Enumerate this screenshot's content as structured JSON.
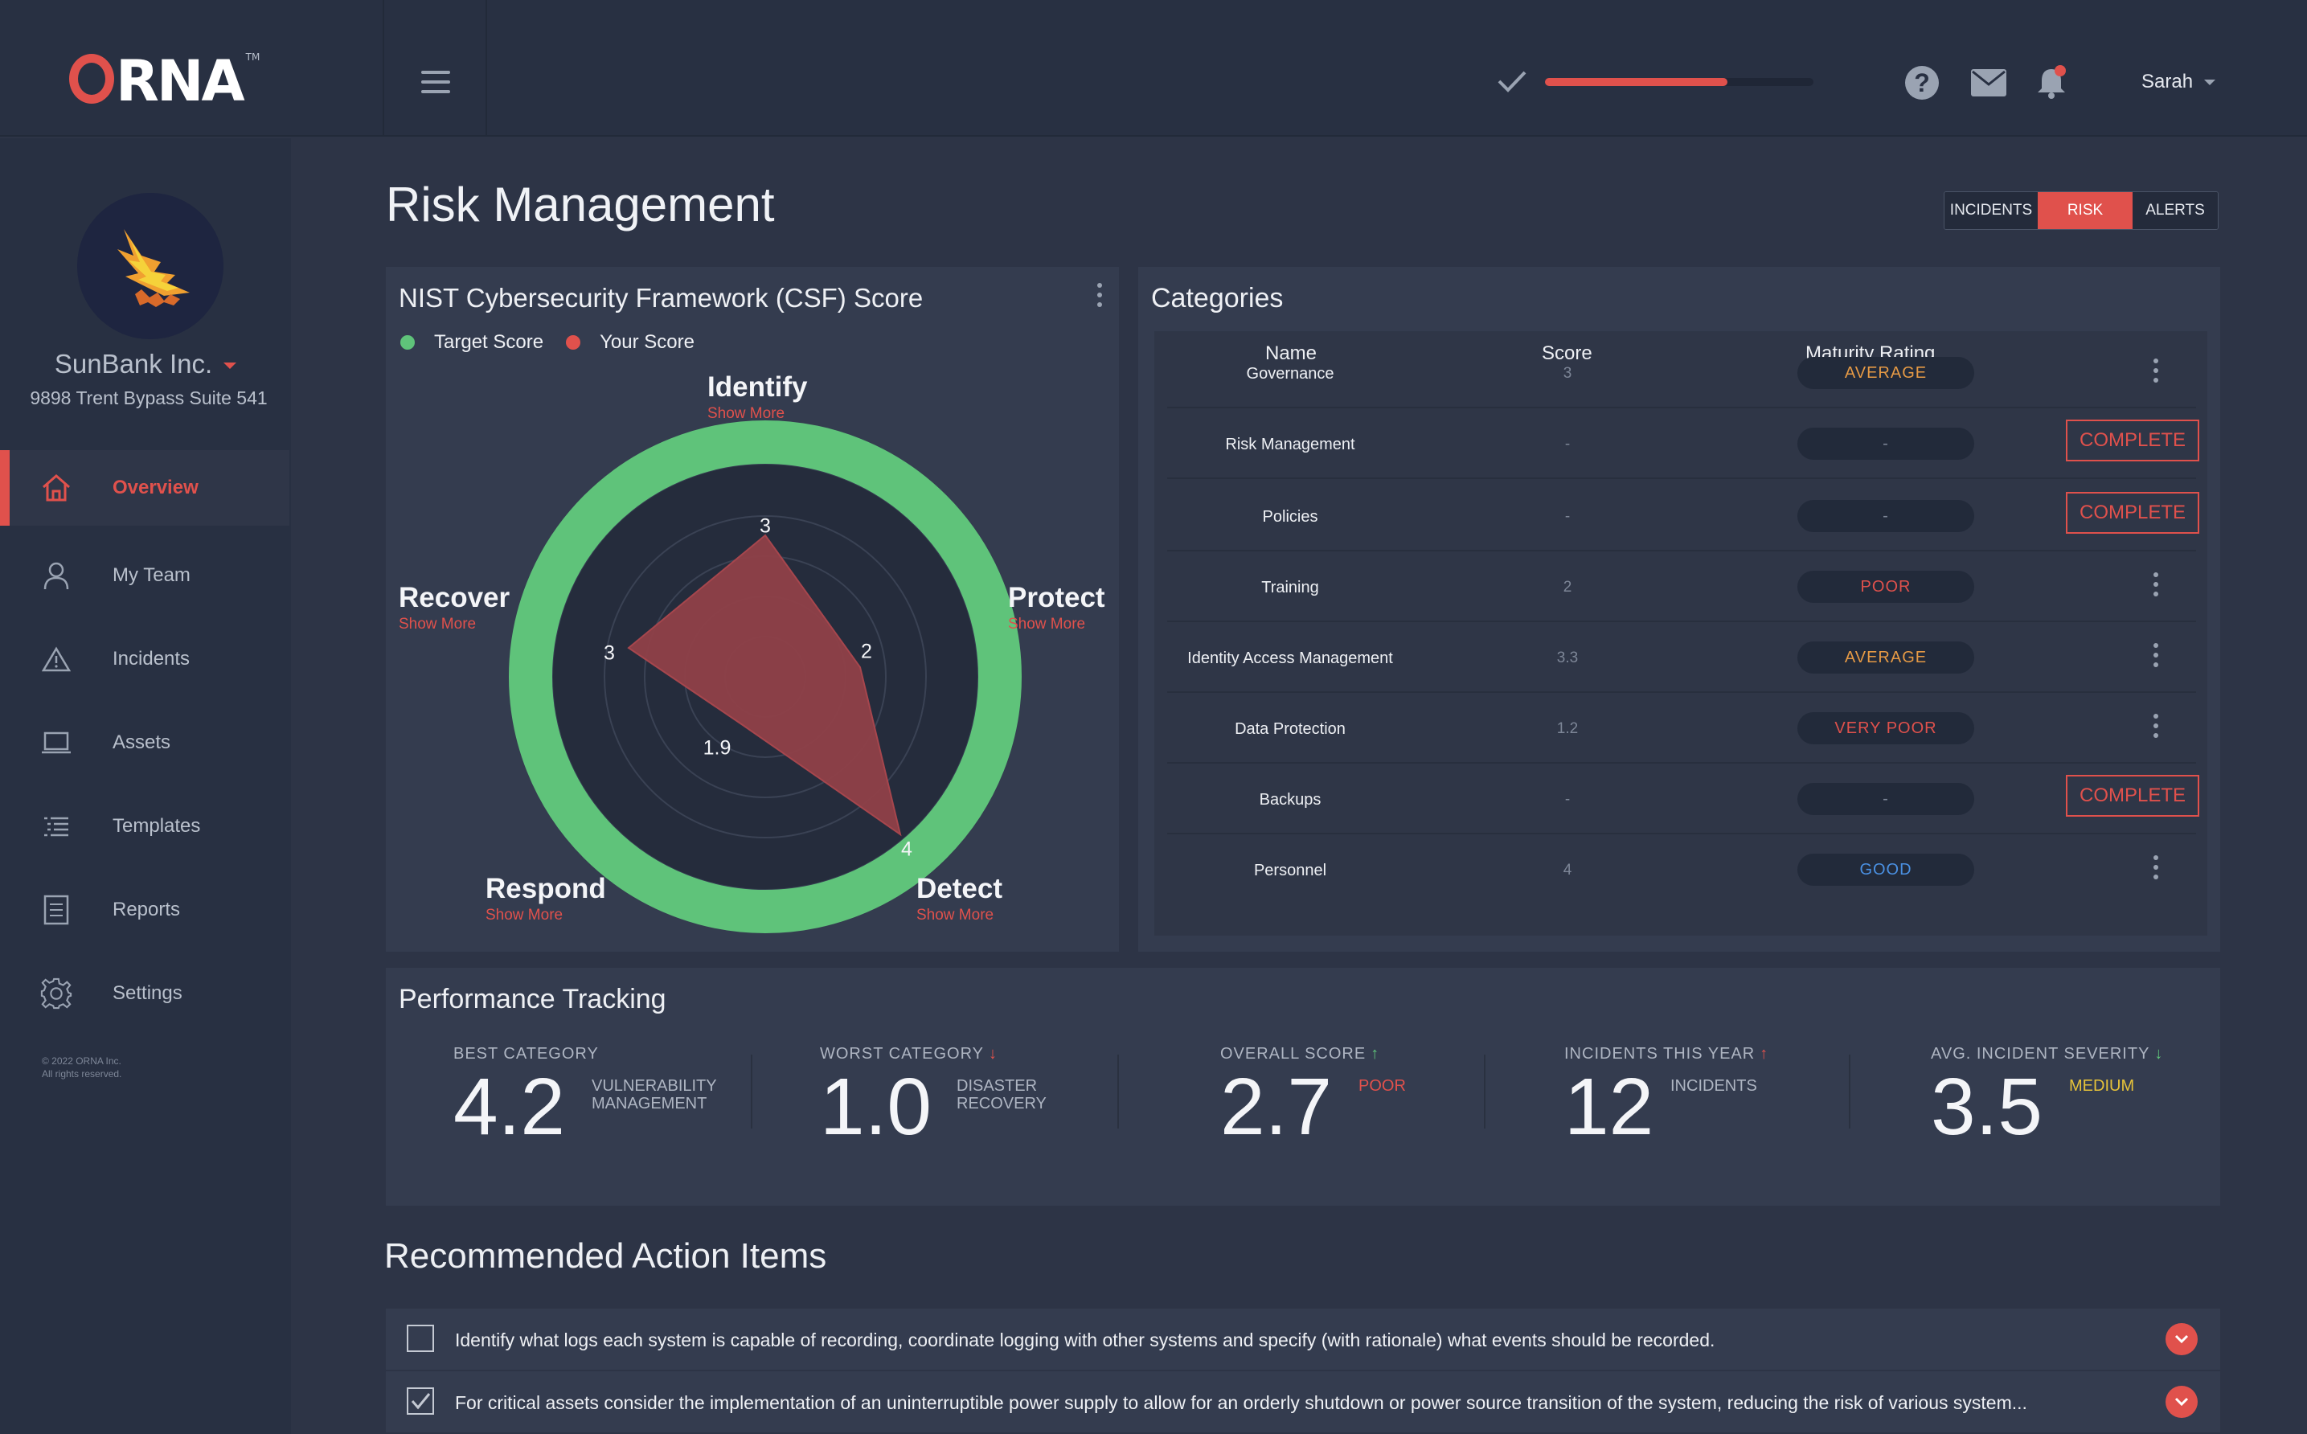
{
  "app": {
    "logo_text": "RNA",
    "logo_tm": "TM",
    "accent": "#e0514c",
    "green": "#5fc37a"
  },
  "topbar": {
    "progress": 0.68,
    "user_name": "Sarah",
    "icons": [
      "check-icon",
      "help-icon",
      "mail-icon",
      "bell-icon"
    ]
  },
  "sidebar": {
    "company": "SunBank Inc.",
    "address": "9898 Trent Bypass Suite 541",
    "items": [
      {
        "label": "Overview",
        "icon": "home-icon",
        "active": true
      },
      {
        "label": "My Team",
        "icon": "user-icon"
      },
      {
        "label": "Incidents",
        "icon": "warning-icon"
      },
      {
        "label": "Assets",
        "icon": "laptop-icon"
      },
      {
        "label": "Templates",
        "icon": "list-icon"
      },
      {
        "label": "Reports",
        "icon": "document-icon"
      },
      {
        "label": "Settings",
        "icon": "gear-icon"
      }
    ],
    "copyright_line1": "© 2022 ORNA Inc.",
    "copyright_line2": "All rights reserved."
  },
  "page": {
    "title": "Risk Management",
    "tabs": [
      "INCIDENTS",
      "RISK",
      "ALERTS"
    ],
    "active_tab": "RISK"
  },
  "nist": {
    "title": "NIST Cybersecurity Framework (CSF) Score",
    "legend_target": "Target Score",
    "legend_yours": "Your Score",
    "show_more": "Show More",
    "axes": [
      "Identify",
      "Protect",
      "Detect",
      "Respond",
      "Recover"
    ],
    "target_scores": [
      5,
      5,
      5,
      5,
      5
    ],
    "your_scores": [
      3,
      2,
      4,
      1.9,
      3
    ],
    "score_labels": [
      "3",
      "2",
      "4",
      "1.9",
      "3"
    ],
    "max": 5
  },
  "categories": {
    "title": "Categories",
    "headers": {
      "name": "Name",
      "score": "Score",
      "rating": "Maturity Rating"
    },
    "complete_label": "COMPLETE",
    "rows": [
      {
        "name": "Governance",
        "score": "3",
        "rating": "AVERAGE",
        "color": "#e69a45",
        "action": "menu"
      },
      {
        "name": "Risk Management",
        "score": "-",
        "rating": "-",
        "color": "#7d8697",
        "action": "complete"
      },
      {
        "name": "Policies",
        "score": "-",
        "rating": "-",
        "color": "#7d8697",
        "action": "complete"
      },
      {
        "name": "Training",
        "score": "2",
        "rating": "POOR",
        "color": "#e0514c",
        "action": "menu"
      },
      {
        "name": "Identity Access Management",
        "score": "3.3",
        "rating": "AVERAGE",
        "color": "#e69a45",
        "action": "menu"
      },
      {
        "name": "Data Protection",
        "score": "1.2",
        "rating": "VERY POOR",
        "color": "#e0514c",
        "action": "menu"
      },
      {
        "name": "Backups",
        "score": "-",
        "rating": "-",
        "color": "#7d8697",
        "action": "complete"
      },
      {
        "name": "Personnel",
        "score": "4",
        "rating": "GOOD",
        "color": "#4a90e2",
        "action": "menu"
      }
    ]
  },
  "performance": {
    "title": "Performance Tracking",
    "metrics": [
      {
        "label": "BEST CATEGORY",
        "value": "4.2",
        "sub1": "VULNERABILITY",
        "sub2": "MANAGEMENT",
        "sub_color": "#aeb5c2",
        "arrow": "",
        "arrow_color": ""
      },
      {
        "label": "WORST CATEGORY",
        "value": "1.0",
        "sub1": "DISASTER",
        "sub2": "RECOVERY",
        "sub_color": "#aeb5c2",
        "arrow": "↓",
        "arrow_color": "#e0514c"
      },
      {
        "label": "OVERALL SCORE",
        "value": "2.7",
        "sub1": "POOR",
        "sub2": "",
        "sub_color": "#e0514c",
        "arrow": "↑",
        "arrow_color": "#5fc37a"
      },
      {
        "label": "INCIDENTS THIS YEAR",
        "value": "12",
        "sub1": "INCIDENTS",
        "sub2": "",
        "sub_color": "#aeb5c2",
        "arrow": "↑",
        "arrow_color": "#e0514c"
      },
      {
        "label": "AVG. INCIDENT SEVERITY",
        "value": "3.5",
        "sub1": "MEDIUM",
        "sub2": "",
        "sub_color": "#e6c23a",
        "arrow": "↓",
        "arrow_color": "#5fc37a"
      }
    ]
  },
  "recommended": {
    "title": "Recommended Action Items",
    "items": [
      {
        "text": "Identify what logs each system is capable of recording, coordinate logging with other systems and specify (with rationale) what events should be recorded.",
        "checked": false
      },
      {
        "text": "For critical assets consider the implementation of an uninterruptible power supply to allow for an orderly shutdown or power source transition of the system, reducing the risk of various system...",
        "checked": true
      }
    ]
  }
}
